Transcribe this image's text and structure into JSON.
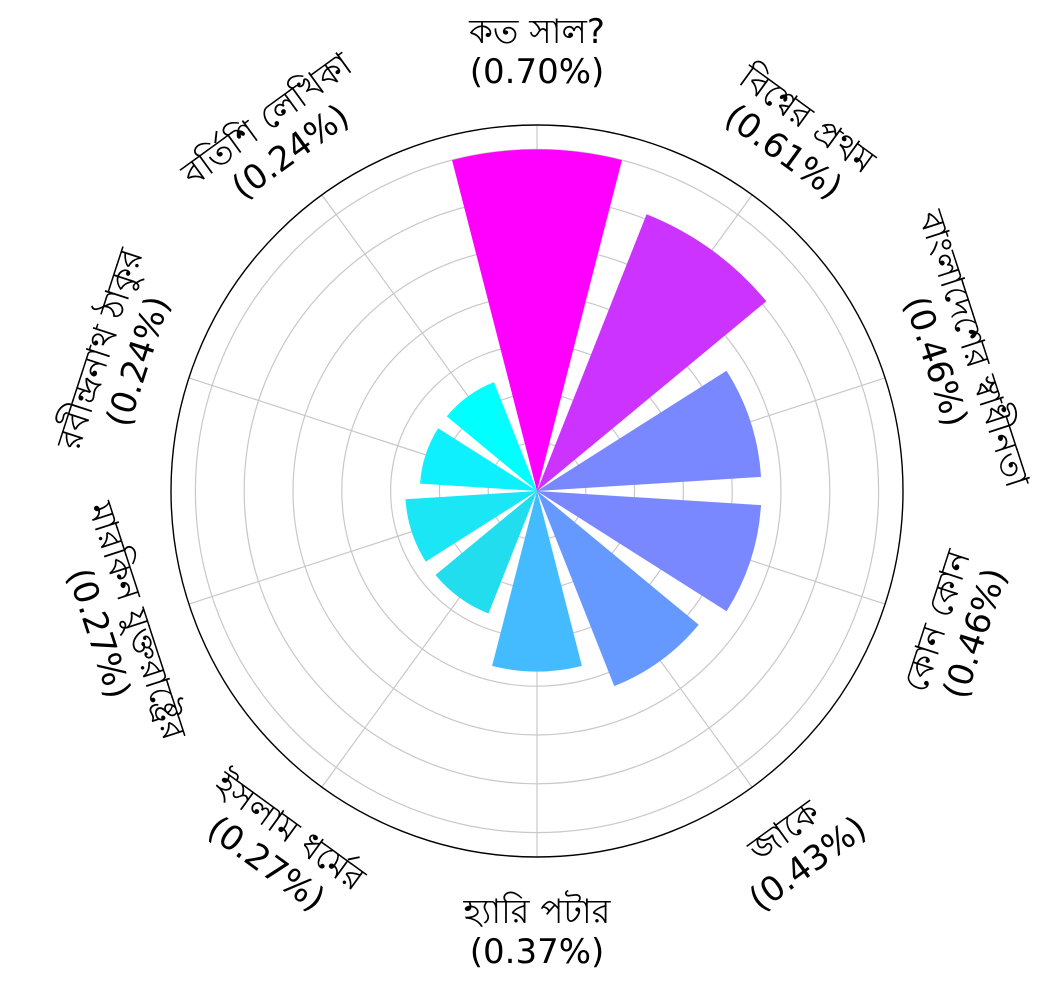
{
  "chart_data": {
    "type": "polar-bar",
    "title": "",
    "value_unit": "%",
    "categories": [
      {
        "name": "কত সাল?",
        "value": 0.7,
        "label_value": "(0.70%)",
        "color": "#ff00ff"
      },
      {
        "name": "বিশ্বের প্রথম",
        "value": 0.61,
        "label_value": "(0.61%)",
        "color": "#cc33ff"
      },
      {
        "name": "বাংলাদেশের স্বাধীনতা",
        "value": 0.46,
        "label_value": "(0.46%)",
        "color": "#7a88ff"
      },
      {
        "name": "কোন কোন",
        "value": 0.46,
        "label_value": "(0.46%)",
        "color": "#7a88ff"
      },
      {
        "name": "জাকে",
        "value": 0.43,
        "label_value": "(0.43%)",
        "color": "#6699ff"
      },
      {
        "name": "হ্যারি পটার",
        "value": 0.37,
        "label_value": "(0.37%)",
        "color": "#44bbff"
      },
      {
        "name": "ইসলাম ধর্মের",
        "value": 0.27,
        "label_value": "(0.27%)",
        "color": "#22ddee"
      },
      {
        "name": "মারকিন যুক্তরাষ্ট্রের",
        "value": 0.27,
        "label_value": "(0.27%)",
        "color": "#1ae6f5"
      },
      {
        "name": "রবীন্দ্রনাথ ঠাকুর",
        "value": 0.24,
        "label_value": "(0.24%)",
        "color": "#0ff0ff"
      },
      {
        "name": "বর্তিশি লেখিকা",
        "value": 0.24,
        "label_value": "(0.24%)",
        "color": "#00ffff"
      }
    ],
    "r_max": 0.75,
    "grid": true,
    "legend": "none"
  }
}
